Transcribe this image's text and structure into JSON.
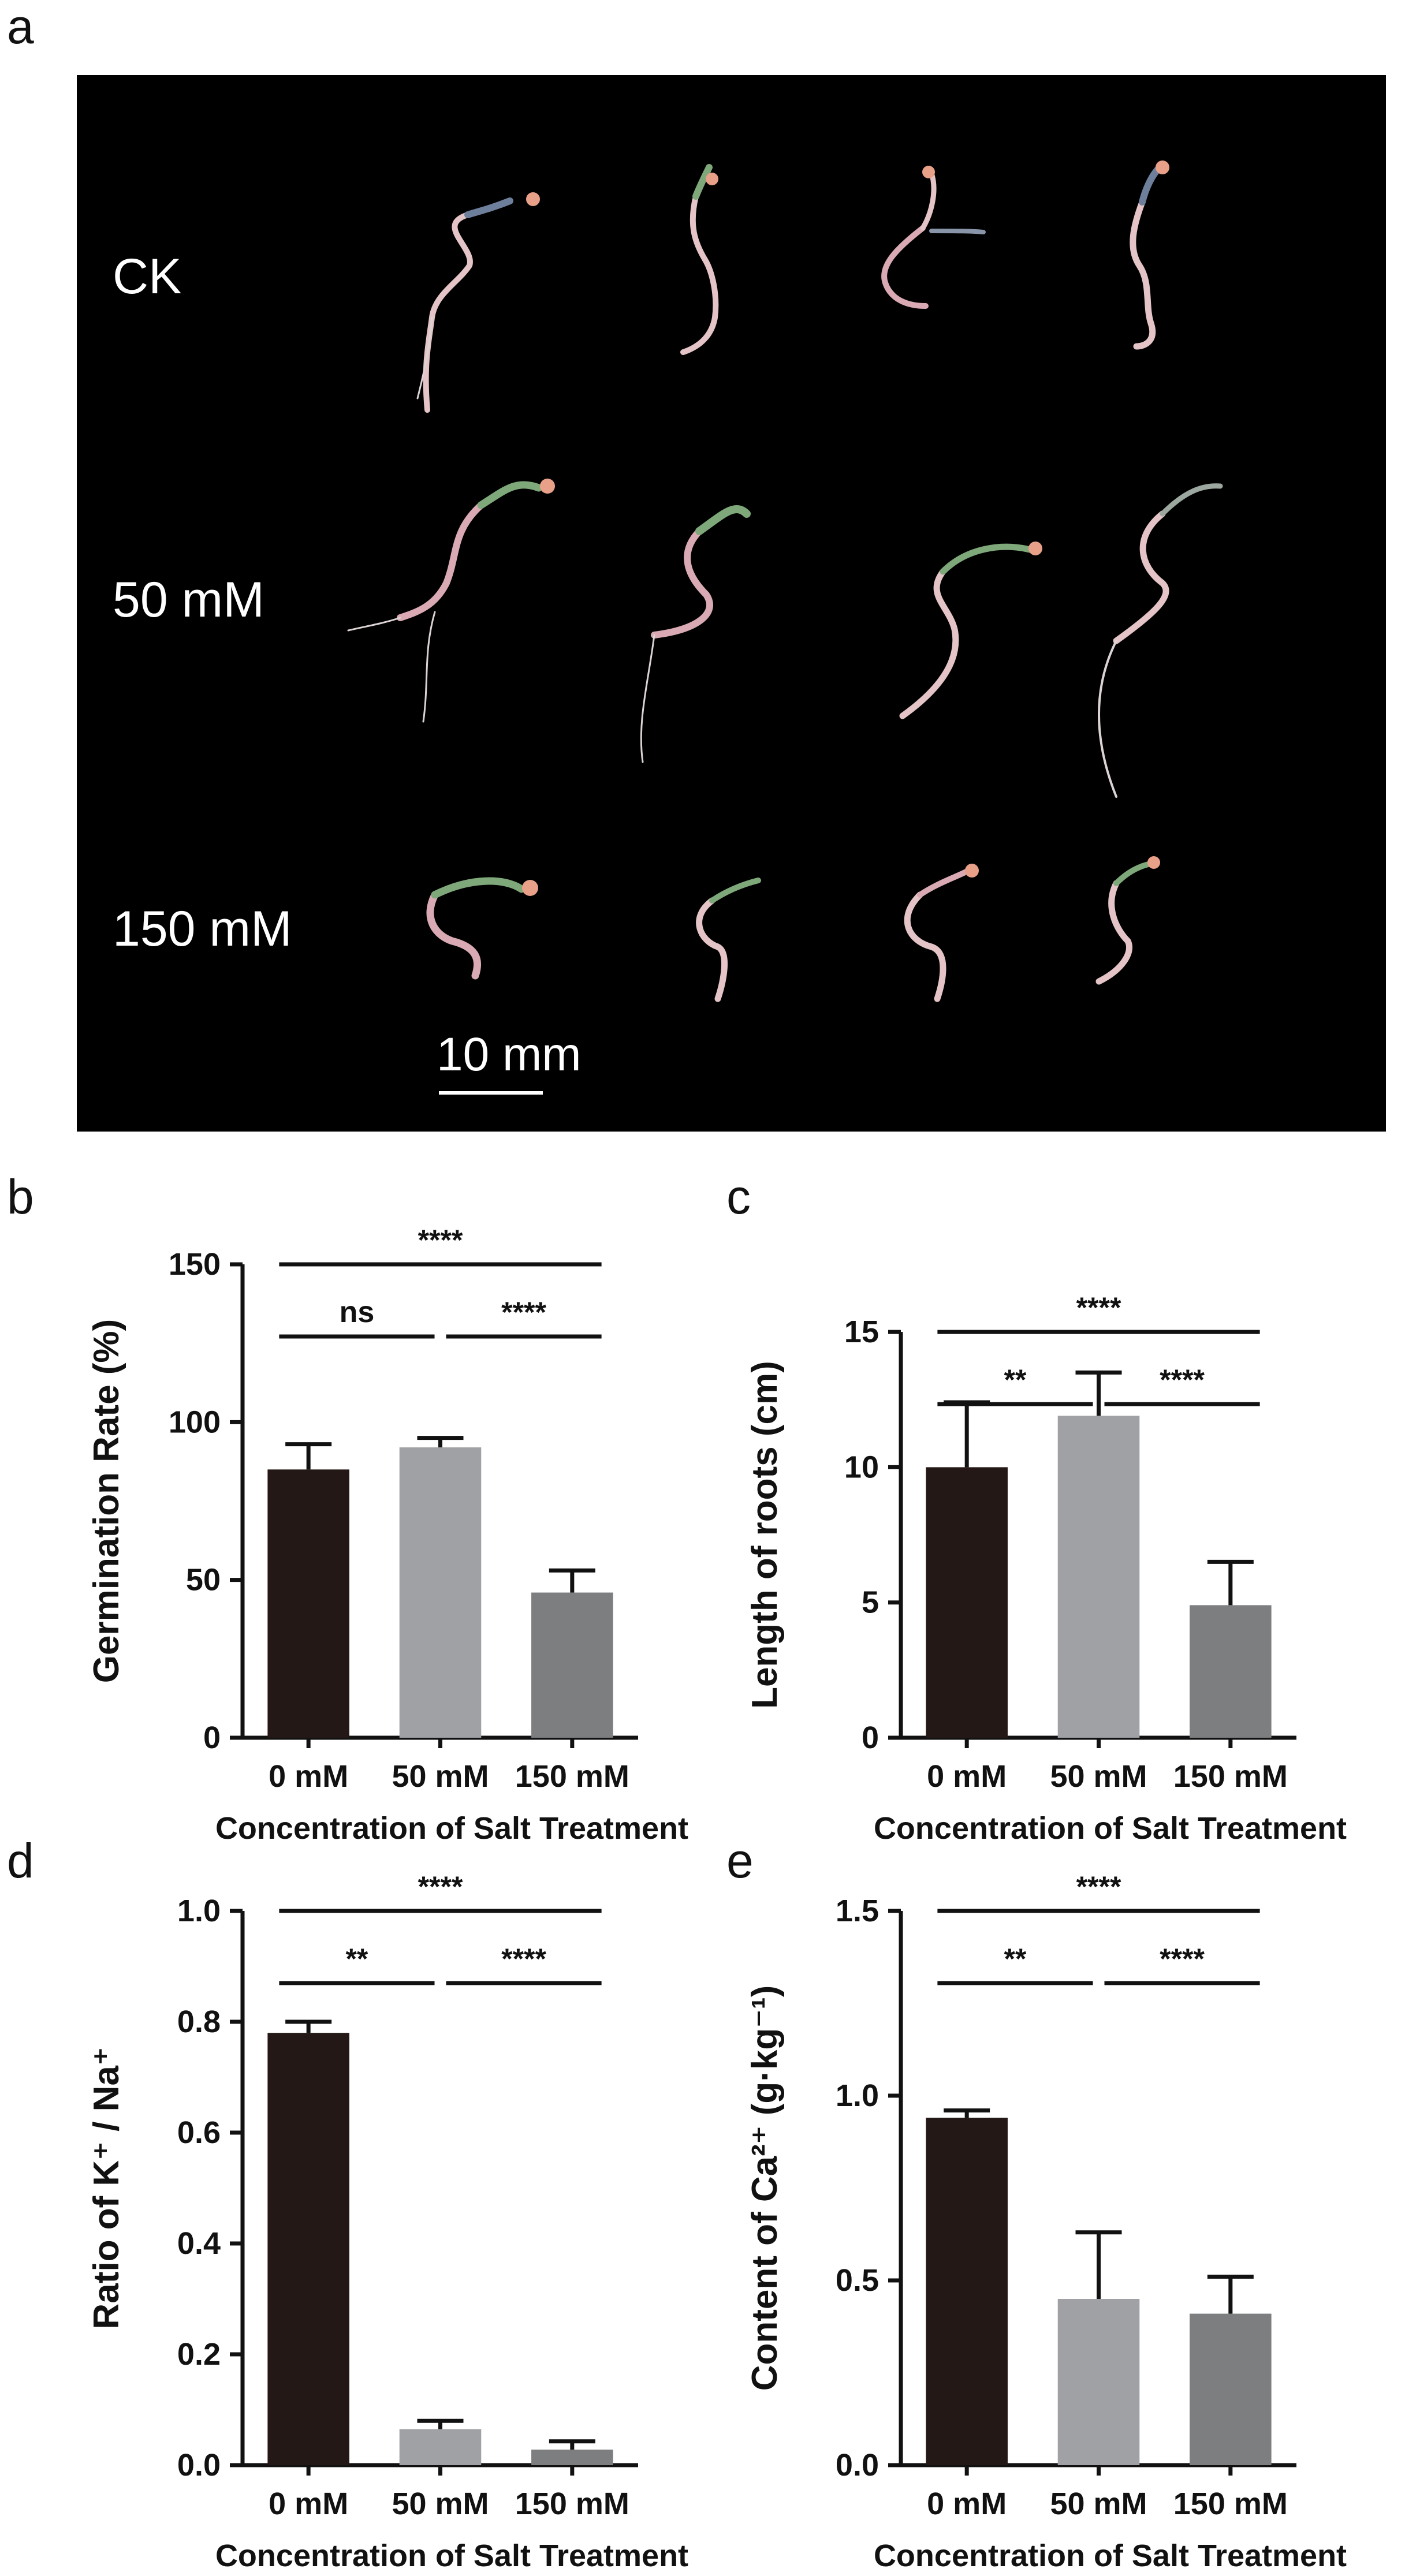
{
  "panels": {
    "a": {
      "letter": "a",
      "rows": [
        "CK",
        "50 mM",
        "150 mM"
      ],
      "scalebar": "10 mm"
    },
    "b": {
      "letter": "b"
    },
    "c": {
      "letter": "c"
    },
    "d": {
      "letter": "d"
    },
    "e": {
      "letter": "e"
    }
  },
  "colors": {
    "background_photo": "#000000",
    "bar_0mM": "#231815",
    "bar_50mM": "#a0a1a4",
    "bar_150mM": "#7d7e80",
    "seedling_stem": "#e4c4c6",
    "seedling_tip": "#e8a088",
    "seedling_leaf": "#7ea87a"
  },
  "chart_data": [
    {
      "id": "b",
      "type": "bar",
      "title": "",
      "ylabel": "Germination Rate (%)",
      "xlabel": "Concentration of Salt Treatment",
      "categories": [
        "0 mM",
        "50 mM",
        "150 mM"
      ],
      "values": [
        85,
        92,
        46
      ],
      "errors": [
        8,
        3,
        7
      ],
      "ylim": [
        0,
        150
      ],
      "yticks": [
        0,
        50,
        100,
        150
      ],
      "ytick_labels": [
        "0",
        "50",
        "100",
        "150"
      ],
      "significance": [
        {
          "from": 0,
          "to": 2,
          "label": "****",
          "level": 1
        },
        {
          "from": 0,
          "to": 1,
          "label": "ns",
          "level": 0
        },
        {
          "from": 1,
          "to": 2,
          "label": "****",
          "level": 0
        }
      ]
    },
    {
      "id": "c",
      "type": "bar",
      "title": "",
      "ylabel": "Length of roots (cm)",
      "xlabel": "Concentration of Salt Treatment",
      "categories": [
        "0 mM",
        "50 mM",
        "150 mM"
      ],
      "values": [
        10.0,
        11.9,
        4.9
      ],
      "errors": [
        2.4,
        1.6,
        1.6
      ],
      "ylim": [
        0,
        17.5
      ],
      "yticks": [
        0,
        5,
        10,
        15
      ],
      "ytick_labels": [
        "0",
        "5",
        "10",
        "15"
      ],
      "significance": [
        {
          "from": 0,
          "to": 2,
          "label": "****",
          "level": 1
        },
        {
          "from": 0,
          "to": 1,
          "label": "**",
          "level": 0
        },
        {
          "from": 1,
          "to": 2,
          "label": "****",
          "level": 0
        }
      ]
    },
    {
      "id": "d",
      "type": "bar",
      "title": "",
      "ylabel": "Ratio of K⁺ / Na⁺",
      "xlabel": "Concentration of Salt Treatment",
      "categories": [
        "0 mM",
        "50 mM",
        "150 mM"
      ],
      "values": [
        0.78,
        0.065,
        0.028
      ],
      "errors": [
        0.02,
        0.015,
        0.015
      ],
      "ylim": [
        0,
        1.0
      ],
      "yticks": [
        0,
        0.2,
        0.4,
        0.6,
        0.8,
        1.0
      ],
      "ytick_labels": [
        "0.0",
        "0.2",
        "0.4",
        "0.6",
        "0.8",
        "1.0"
      ],
      "significance": [
        {
          "from": 0,
          "to": 2,
          "label": "****",
          "level": 1
        },
        {
          "from": 0,
          "to": 1,
          "label": "**",
          "level": 0
        },
        {
          "from": 1,
          "to": 2,
          "label": "****",
          "level": 0
        }
      ]
    },
    {
      "id": "e",
      "type": "bar",
      "title": "",
      "ylabel": "Content of Ca²⁺ (g·kg⁻¹)",
      "xlabel": "Concentration of Salt Treatment",
      "categories": [
        "0 mM",
        "50 mM",
        "150 mM"
      ],
      "values": [
        0.94,
        0.45,
        0.41
      ],
      "errors": [
        0.02,
        0.18,
        0.1
      ],
      "ylim": [
        0,
        1.5
      ],
      "yticks": [
        0,
        0.5,
        1.0,
        1.5
      ],
      "ytick_labels": [
        "0.0",
        "0.5",
        "1.0",
        "1.5"
      ],
      "significance": [
        {
          "from": 0,
          "to": 2,
          "label": "****",
          "level": 1
        },
        {
          "from": 0,
          "to": 1,
          "label": "**",
          "level": 0
        },
        {
          "from": 1,
          "to": 2,
          "label": "****",
          "level": 0
        }
      ]
    }
  ]
}
